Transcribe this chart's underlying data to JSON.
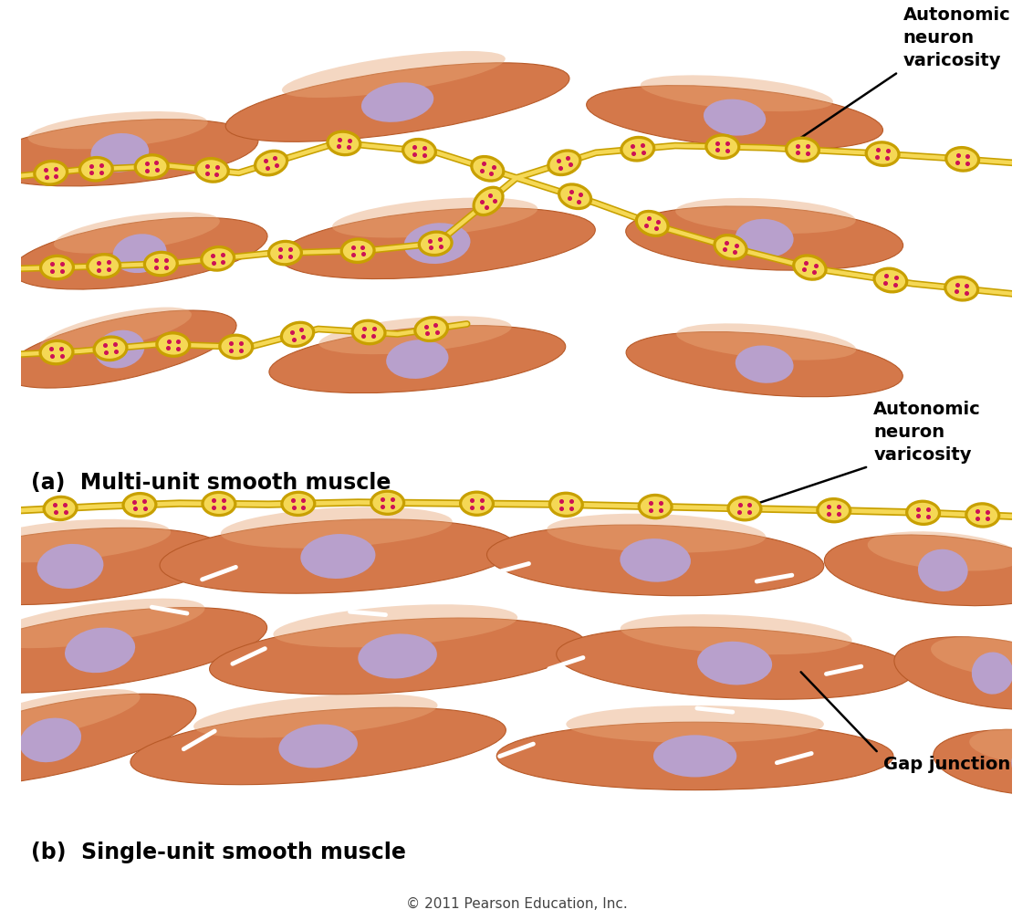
{
  "bg_color": "#ffffff",
  "muscle_color": "#d4784a",
  "muscle_highlight": "#e8a878",
  "muscle_dark": "#b85a28",
  "nucleus_color": "#b8a0cc",
  "neuron_color": "#f5d855",
  "neuron_edge": "#c8a000",
  "dot_color": "#cc1155",
  "label_a": "(a)  Multi-unit smooth muscle",
  "label_b": "(b)  Single-unit smooth muscle",
  "label_varicosity": "Autonomic\nneuron\nvaricosity",
  "label_gap": "Gap junction",
  "copyright": "© 2011 Pearson Education, Inc.",
  "font_size_label": 17,
  "font_size_annot": 14,
  "font_size_copy": 11,
  "cells_a": [
    [
      1.0,
      3.05,
      2.8,
      0.62,
      5
    ],
    [
      3.8,
      3.55,
      3.5,
      0.62,
      8
    ],
    [
      7.2,
      3.4,
      3.0,
      0.58,
      -5
    ],
    [
      1.2,
      2.05,
      2.6,
      0.62,
      8
    ],
    [
      4.2,
      2.15,
      3.2,
      0.65,
      5
    ],
    [
      7.5,
      2.2,
      2.8,
      0.62,
      -3
    ],
    [
      1.0,
      1.1,
      2.4,
      0.6,
      12
    ],
    [
      4.0,
      1.0,
      3.0,
      0.62,
      5
    ],
    [
      7.5,
      0.95,
      2.8,
      0.6,
      -5
    ]
  ],
  "cells_b_row1": [
    [
      0.5,
      2.62,
      3.2,
      0.72,
      5
    ],
    [
      3.2,
      2.72,
      3.6,
      0.72,
      3
    ],
    [
      6.4,
      2.68,
      3.4,
      0.7,
      -2
    ],
    [
      9.3,
      2.58,
      2.4,
      0.68,
      -5
    ]
  ],
  "cells_b_row2": [
    [
      0.8,
      1.78,
      3.4,
      0.72,
      8
    ],
    [
      3.8,
      1.72,
      3.8,
      0.72,
      4
    ],
    [
      7.2,
      1.65,
      3.6,
      0.7,
      -3
    ],
    [
      9.8,
      1.55,
      2.0,
      0.68,
      -8
    ]
  ],
  "cells_b_row3": [
    [
      0.3,
      0.88,
      3.0,
      0.7,
      12
    ],
    [
      3.0,
      0.82,
      3.8,
      0.7,
      5
    ],
    [
      6.8,
      0.72,
      4.0,
      0.68,
      0
    ],
    [
      10.2,
      0.65,
      2.0,
      0.65,
      -5
    ]
  ]
}
